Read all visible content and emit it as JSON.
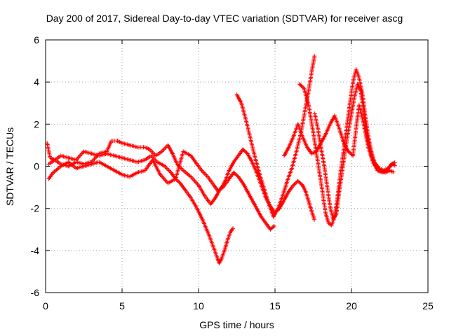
{
  "chart_data": {
    "type": "scatter",
    "title": "Day 200 of 2017, Sidereal Day-to-day VTEC variation (SDTVAR) for receiver ascg",
    "xlabel": "GPS time / hours",
    "ylabel": "SDTVAR / TECUs",
    "xlim": [
      0,
      25
    ],
    "ylim": [
      -6,
      6
    ],
    "xticks": [
      "0",
      "5",
      "10",
      "15",
      "20",
      "25"
    ],
    "yticks": [
      "-6",
      "-4",
      "-2",
      "0",
      "2",
      "4",
      "6"
    ],
    "grid": true,
    "marker": "+",
    "color": "#ff0000",
    "series": [
      {
        "x": [
          0.1,
          0.3,
          0.6,
          1.0,
          1.5,
          2.0,
          2.5,
          3.0,
          3.5,
          4.0,
          4.5,
          5.0,
          5.5,
          6.0,
          6.5,
          6.9,
          7.3,
          7.8,
          8.2,
          8.5,
          8.8,
          9.1,
          9.5,
          9.9,
          10.3,
          10.7,
          11.0,
          11.2,
          11.35,
          11.5,
          11.7,
          11.9,
          12.1,
          12.3
        ],
        "y": [
          1.1,
          0.4,
          0.3,
          0.5,
          0.4,
          0.3,
          0.7,
          0.6,
          0.5,
          0.6,
          0.5,
          0.4,
          0.3,
          0.2,
          0.3,
          0.5,
          0.2,
          0.0,
          -0.3,
          -0.6,
          -0.8,
          -1.1,
          -1.5,
          -2.0,
          -2.6,
          -3.3,
          -3.9,
          -4.3,
          -4.6,
          -4.4,
          -4.0,
          -3.5,
          -3.1,
          -2.9
        ]
      },
      {
        "x": [
          0.2,
          0.6,
          1.0,
          1.5,
          2.0,
          2.5,
          3.0,
          3.5,
          4.0,
          4.3,
          4.7,
          5.0,
          5.5,
          6.0,
          6.5,
          6.8,
          7.2,
          7.6,
          8.0,
          8.3,
          8.6,
          9.0,
          9.5,
          10.0,
          10.4,
          10.8,
          11.1,
          11.4,
          11.6,
          12.0,
          12.3,
          12.6,
          12.9,
          13.2,
          13.5,
          13.8,
          14.1,
          14.4,
          14.7,
          15.0
        ],
        "y": [
          0.1,
          0.3,
          0.1,
          0.0,
          0.2,
          0.1,
          0.2,
          0.6,
          0.7,
          1.2,
          1.2,
          1.1,
          1.0,
          0.9,
          0.9,
          0.8,
          0.5,
          0.7,
          1.0,
          0.6,
          0.1,
          -0.2,
          -0.5,
          -0.9,
          -1.4,
          -1.8,
          -1.5,
          -1.1,
          -1.0,
          -0.6,
          -0.3,
          -0.5,
          -0.8,
          -1.2,
          -1.6,
          -2.0,
          -2.4,
          -2.7,
          -3.0,
          -2.8
        ]
      },
      {
        "x": [
          0.2,
          0.5,
          1.0,
          1.5,
          2.0,
          2.5,
          3.0,
          3.5,
          4.0,
          4.5,
          5.0,
          5.5,
          6.0,
          6.5,
          7.0,
          7.5,
          8.0,
          8.5,
          9.0,
          9.5,
          9.8,
          10.2,
          10.6,
          11.0,
          11.3,
          11.6,
          11.8,
          12.0,
          12.3,
          12.6,
          12.9,
          13.2,
          13.5,
          13.8,
          14.1,
          14.4,
          14.7,
          15.0,
          15.3,
          15.6,
          15.9,
          16.2,
          16.5,
          16.8,
          17.0,
          17.3,
          17.6
        ],
        "y": [
          -0.6,
          -0.3,
          0.0,
          0.2,
          -0.1,
          0.0,
          0.1,
          0.2,
          0.0,
          -0.2,
          -0.4,
          -0.5,
          -0.3,
          -0.2,
          0.3,
          -0.4,
          -0.8,
          -0.6,
          0.7,
          0.5,
          0.2,
          -0.2,
          -0.5,
          -0.9,
          -1.2,
          -0.9,
          -0.6,
          -0.2,
          0.2,
          0.5,
          0.8,
          0.6,
          0.2,
          -0.3,
          -0.9,
          -1.5,
          -1.9,
          -2.2,
          -2.0,
          -1.6,
          -1.2,
          -0.9,
          -0.7,
          -0.9,
          -1.2,
          -1.9,
          -2.6
        ]
      },
      {
        "x": [
          12.5,
          12.8,
          13.1,
          13.4,
          13.7,
          14.0,
          14.3,
          14.6,
          14.9,
          15.2,
          15.5,
          15.8,
          16.1,
          16.4,
          16.7,
          17.0,
          17.2,
          17.4,
          17.6
        ],
        "y": [
          3.4,
          3.0,
          2.2,
          1.3,
          0.4,
          -0.4,
          -1.1,
          -1.8,
          -2.4,
          -2.0,
          -1.4,
          -0.7,
          -0.1,
          0.7,
          1.6,
          2.8,
          3.6,
          4.5,
          5.3
        ]
      },
      {
        "x": [
          16.6,
          16.9,
          17.2,
          17.5,
          17.8,
          18.1,
          18.3,
          18.5,
          18.7,
          18.9,
          19.1,
          19.3,
          19.5,
          19.7,
          19.9,
          20.1,
          20.3,
          20.5,
          20.7,
          20.9,
          21.1,
          21.3,
          21.5,
          21.8,
          22.1,
          22.4,
          22.7,
          22.9
        ],
        "y": [
          3.9,
          3.7,
          2.9,
          1.6,
          0.2,
          -1.2,
          -2.2,
          -2.7,
          -2.8,
          -2.4,
          -1.4,
          -0.2,
          0.8,
          1.9,
          3.0,
          4.0,
          4.6,
          4.2,
          3.5,
          2.4,
          1.4,
          0.7,
          0.2,
          -0.1,
          -0.2,
          -0.1,
          0.1,
          0.0
        ]
      },
      {
        "x": [
          15.6,
          15.9,
          16.2,
          16.5,
          16.8,
          17.1,
          17.4,
          17.7,
          18.0,
          18.3,
          18.6,
          18.9,
          19.2,
          19.5,
          19.8,
          20.1,
          20.3,
          20.5,
          20.8,
          21.1,
          21.4,
          21.7,
          22.0,
          22.3,
          22.6,
          22.9
        ],
        "y": [
          0.5,
          0.9,
          1.4,
          2.0,
          1.4,
          0.9,
          0.6,
          0.7,
          1.1,
          1.5,
          2.0,
          2.4,
          1.8,
          1.1,
          0.7,
          0.5,
          1.8,
          2.9,
          2.0,
          0.9,
          0.2,
          -0.2,
          -0.3,
          -0.2,
          0.1,
          0.2
        ]
      },
      {
        "x": [
          17.6,
          17.8,
          18.0,
          18.2,
          18.4,
          18.6,
          18.8,
          19.0,
          19.2,
          19.4,
          19.6,
          19.8,
          20.0,
          20.2,
          20.4,
          20.6,
          20.8,
          21.0,
          21.3,
          21.6,
          21.9,
          22.2,
          22.5,
          22.8
        ],
        "y": [
          2.5,
          1.8,
          0.9,
          0.1,
          -0.9,
          -1.9,
          -2.5,
          -2.3,
          -1.2,
          -0.2,
          0.8,
          1.7,
          2.5,
          3.3,
          3.9,
          3.6,
          2.6,
          1.5,
          0.5,
          0.0,
          -0.2,
          -0.3,
          -0.2,
          -0.3
        ]
      }
    ]
  }
}
